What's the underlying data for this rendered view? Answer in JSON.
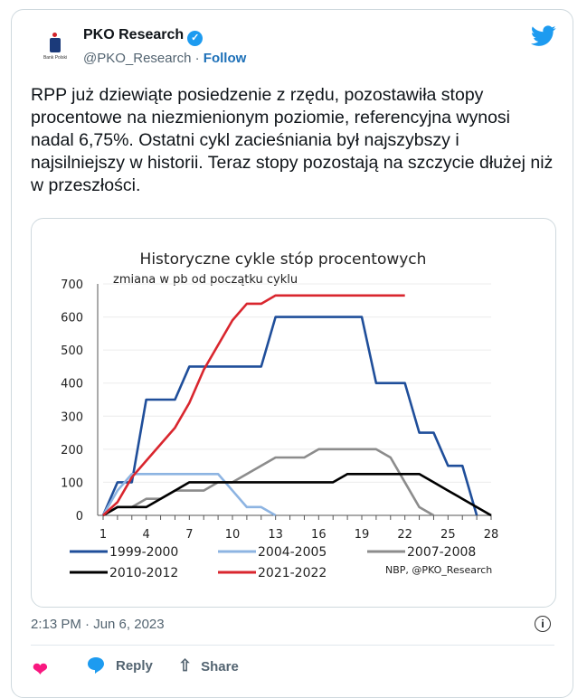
{
  "author": {
    "name": "PKO Research",
    "handle": "@PKO_Research",
    "separator": "·",
    "follow_label": "Follow",
    "logo_text": "Bank Polski"
  },
  "tweet_text": "RPP już dziewiąte posiedzenie z rzędu, pozostawiła stopy procentowe na niezmienionym poziomie, referencyjna wynosi nadal 6,75%. Ostatni cykl zacieśniania był najszybszy i najsilniejszy w historii. Teraz stopy pozostają na szczycie dłużej niż w przeszłości.",
  "timestamp": "2:13 PM · Jun 6, 2023",
  "actions": {
    "reply": "Reply",
    "share": "Share"
  },
  "colors": {
    "accent": "#1d9bf0",
    "like": "#f91880"
  },
  "chart_data": {
    "type": "line",
    "title": "Historyczne cykle stóp procentowych",
    "subtitle": "zmiana w pb od początku cyklu",
    "source": "NBP, @PKO_Research",
    "xlim": [
      1,
      28
    ],
    "ylim": [
      0,
      700
    ],
    "xticks": [
      1,
      4,
      7,
      10,
      13,
      16,
      19,
      22,
      25,
      28
    ],
    "yticks": [
      0,
      100,
      200,
      300,
      400,
      500,
      600,
      700
    ],
    "grid": true,
    "legend_placement": "bottom",
    "series": [
      {
        "name": "1999-2000",
        "color": "#1f4e9a",
        "x": [
          1,
          2,
          3,
          4,
          5,
          6,
          7,
          8,
          9,
          10,
          11,
          12,
          13,
          14,
          15,
          16,
          17,
          18,
          19,
          20,
          21,
          22,
          23,
          24,
          25,
          26,
          27
        ],
        "values": [
          0,
          100,
          100,
          350,
          350,
          350,
          450,
          450,
          450,
          450,
          450,
          450,
          600,
          600,
          600,
          600,
          600,
          600,
          600,
          400,
          400,
          400,
          250,
          250,
          150,
          150,
          0
        ]
      },
      {
        "name": "2004-2005",
        "color": "#8db4e2",
        "x": [
          1,
          2,
          3,
          4,
          5,
          6,
          7,
          8,
          9,
          10,
          11,
          12,
          13
        ],
        "values": [
          0,
          75,
          125,
          125,
          125,
          125,
          125,
          125,
          125,
          75,
          25,
          25,
          0
        ]
      },
      {
        "name": "2007-2008",
        "color": "#8c8c8c",
        "x": [
          1,
          2,
          3,
          4,
          5,
          6,
          7,
          8,
          9,
          10,
          11,
          12,
          13,
          14,
          15,
          16,
          17,
          18,
          19,
          20,
          21,
          22,
          23,
          24
        ],
        "values": [
          0,
          25,
          25,
          50,
          50,
          75,
          75,
          75,
          100,
          100,
          125,
          150,
          175,
          175,
          175,
          200,
          200,
          200,
          200,
          200,
          175,
          100,
          25,
          0
        ]
      },
      {
        "name": "2010-2012",
        "color": "#000000",
        "x": [
          1,
          2,
          3,
          4,
          5,
          6,
          7,
          8,
          9,
          10,
          11,
          12,
          13,
          14,
          15,
          16,
          17,
          18,
          19,
          20,
          21,
          22,
          23,
          24,
          25,
          26,
          27,
          28
        ],
        "values": [
          0,
          25,
          25,
          25,
          50,
          75,
          100,
          100,
          100,
          100,
          100,
          100,
          100,
          100,
          100,
          100,
          100,
          125,
          125,
          125,
          125,
          125,
          125,
          100,
          75,
          50,
          25,
          0
        ]
      },
      {
        "name": "2021-2022",
        "color": "#d9262e",
        "x": [
          1,
          2,
          3,
          4,
          5,
          6,
          7,
          8,
          9,
          10,
          11,
          12,
          13,
          14,
          15,
          16,
          17,
          18,
          19,
          20,
          21,
          22
        ],
        "values": [
          0,
          40,
          115,
          165,
          215,
          265,
          340,
          440,
          515,
          590,
          640,
          640,
          665,
          665,
          665,
          665,
          665,
          665,
          665,
          665,
          665,
          665
        ]
      }
    ]
  }
}
